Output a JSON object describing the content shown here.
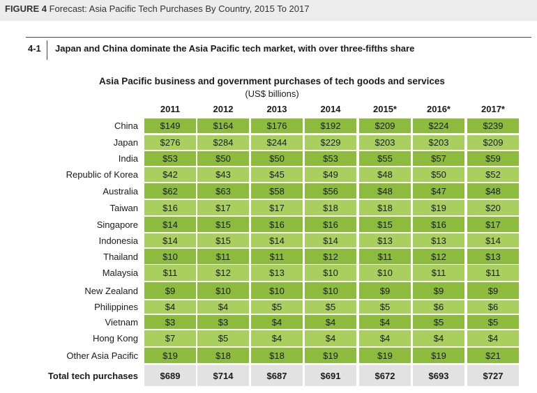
{
  "figure": {
    "label": "FIGURE 4",
    "title": "Forecast: Asia Pacific Tech Purchases By Country, 2015 To 2017"
  },
  "section": {
    "number": "4-1",
    "title": "Japan and China dominate the Asia Pacific tech market, with over three-fifths share"
  },
  "colors": {
    "band_dark": "#8dbb3e",
    "band_light": "#a9cf5f",
    "total_row": "#e2e2e2",
    "top_bar": "#ececec"
  },
  "chart_data": {
    "type": "table",
    "title": "Asia Pacific business and government purchases of tech goods and services",
    "units": "(US$ billions)",
    "columns": [
      "2011",
      "2012",
      "2013",
      "2014",
      "2015*",
      "2016*",
      "2017*"
    ],
    "rows": [
      {
        "label": "China",
        "values": [
          "$149",
          "$164",
          "$176",
          "$192",
          "$209",
          "$224",
          "$239"
        ]
      },
      {
        "label": "Japan",
        "values": [
          "$276",
          "$284",
          "$244",
          "$229",
          "$203",
          "$203",
          "$209"
        ]
      },
      {
        "label": "India",
        "values": [
          "$53",
          "$50",
          "$50",
          "$53",
          "$55",
          "$57",
          "$59"
        ]
      },
      {
        "label": "Republic of Korea",
        "values": [
          "$42",
          "$43",
          "$45",
          "$49",
          "$48",
          "$50",
          "$52"
        ]
      },
      {
        "label": "Australia",
        "values": [
          "$62",
          "$63",
          "$58",
          "$56",
          "$48",
          "$47",
          "$48"
        ]
      },
      {
        "label": "Taiwan",
        "values": [
          "$16",
          "$17",
          "$17",
          "$18",
          "$18",
          "$19",
          "$20"
        ]
      },
      {
        "label": "Singapore",
        "values": [
          "$14",
          "$15",
          "$16",
          "$16",
          "$15",
          "$16",
          "$17"
        ]
      },
      {
        "label": "Indonesia",
        "values": [
          "$14",
          "$15",
          "$14",
          "$14",
          "$13",
          "$13",
          "$14"
        ]
      },
      {
        "label": "Thailand",
        "values": [
          "$10",
          "$11",
          "$11",
          "$12",
          "$11",
          "$12",
          "$13"
        ]
      },
      {
        "label": "Malaysia",
        "values": [
          "$11",
          "$12",
          "$13",
          "$10",
          "$10",
          "$11",
          "$11"
        ]
      },
      {
        "label": "New Zealand",
        "values": [
          "$9",
          "$10",
          "$10",
          "$10",
          "$9",
          "$9",
          "$9"
        ]
      },
      {
        "label": "Philippines",
        "values": [
          "$4",
          "$4",
          "$5",
          "$5",
          "$5",
          "$6",
          "$6"
        ]
      },
      {
        "label": "Vietnam",
        "values": [
          "$3",
          "$3",
          "$4",
          "$4",
          "$4",
          "$5",
          "$5"
        ]
      },
      {
        "label": "Hong Kong",
        "values": [
          "$7",
          "$5",
          "$4",
          "$4",
          "$4",
          "$4",
          "$4"
        ]
      },
      {
        "label": "Other Asia Pacific",
        "values": [
          "$19",
          "$18",
          "$18",
          "$19",
          "$19",
          "$19",
          "$21"
        ]
      }
    ],
    "total": {
      "label": "Total tech purchases",
      "values": [
        "$689",
        "$714",
        "$687",
        "$691",
        "$672",
        "$693",
        "$727"
      ]
    }
  }
}
